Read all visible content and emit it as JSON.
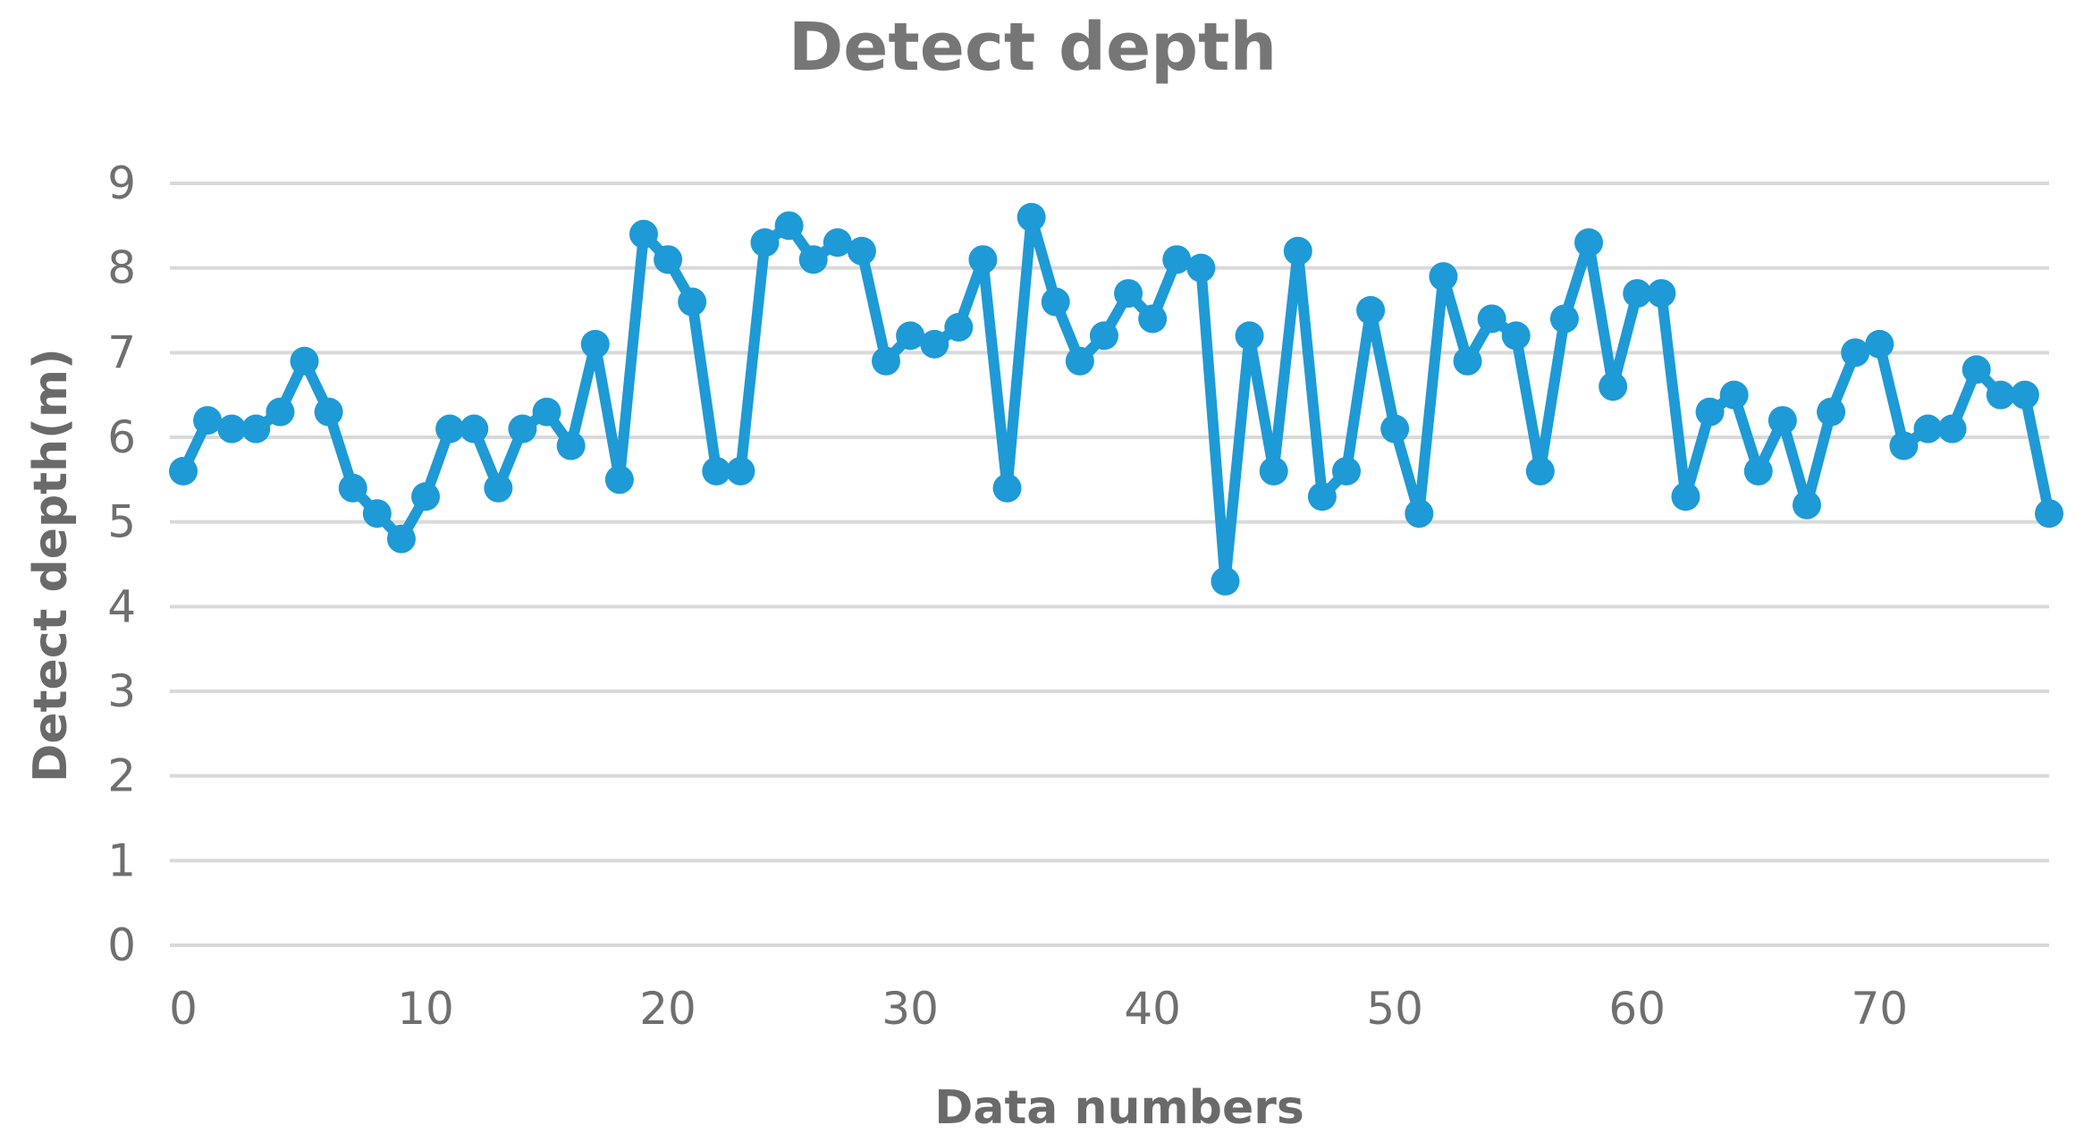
{
  "chart_data": {
    "type": "line",
    "title": "Detect depth",
    "xlabel": "Data numbers",
    "ylabel": "Detect depth(m)",
    "xlim": [
      0,
      77
    ],
    "ylim": [
      0,
      9
    ],
    "x_ticks": [
      0,
      10,
      20,
      30,
      40,
      50,
      60,
      70
    ],
    "y_ticks": [
      0,
      1,
      2,
      3,
      4,
      5,
      6,
      7,
      8,
      9
    ],
    "grid": true,
    "legend": "none",
    "color": "#1e9ad6",
    "series": [
      {
        "x": [
          0,
          1,
          2,
          3,
          4,
          5,
          6,
          7,
          8,
          9,
          10,
          11,
          12,
          13,
          14,
          15,
          16,
          17,
          18,
          19,
          20,
          21,
          22,
          23,
          24,
          25,
          26,
          27,
          28,
          29,
          30,
          31,
          32,
          33,
          34,
          35,
          36,
          37,
          38,
          39,
          40,
          41,
          42,
          43,
          44,
          45,
          46,
          47,
          48,
          49,
          50,
          51,
          52,
          53,
          54,
          55,
          56,
          57,
          58,
          59,
          60,
          61,
          62,
          63,
          64,
          65,
          66,
          67,
          68,
          69,
          70,
          71,
          72,
          73,
          74,
          75,
          76,
          77
        ],
        "values": [
          5.6,
          6.2,
          6.1,
          6.1,
          6.3,
          6.9,
          6.3,
          5.4,
          5.1,
          4.8,
          5.3,
          6.1,
          6.1,
          5.4,
          6.1,
          6.3,
          5.9,
          7.1,
          5.5,
          8.4,
          8.1,
          7.6,
          5.6,
          5.6,
          8.3,
          8.5,
          8.1,
          8.3,
          8.2,
          6.9,
          7.2,
          7.1,
          7.3,
          8.1,
          5.4,
          8.6,
          7.6,
          6.9,
          7.2,
          7.7,
          7.4,
          8.1,
          8.0,
          4.3,
          7.2,
          5.6,
          8.2,
          5.3,
          5.6,
          7.5,
          6.1,
          5.1,
          7.9,
          6.9,
          7.4,
          7.2,
          5.6,
          7.4,
          8.3,
          6.6,
          7.7,
          7.7,
          5.3,
          6.3,
          6.5,
          5.6,
          6.2,
          5.2,
          6.3,
          7.0,
          7.1,
          5.9,
          6.1,
          6.1,
          6.8,
          6.5,
          6.5,
          5.1
        ]
      }
    ]
  }
}
